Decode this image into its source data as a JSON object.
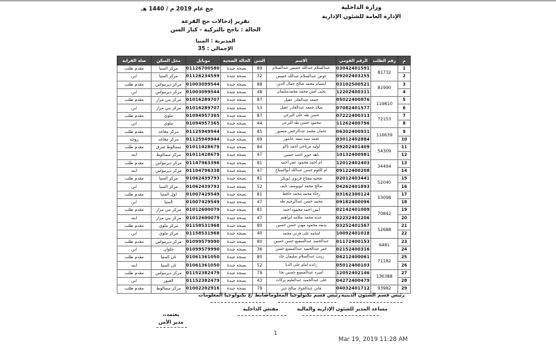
{
  "colors": {
    "table_header_bg": "#4d4d4d",
    "table_border": "#7a7a7a"
  },
  "page_header": {
    "ministry": "وزارة الداخلية",
    "department": "الإدارة العامة للشئون الإدارية",
    "hajj_year": "حج عام 2019 م / 1440 هـ"
  },
  "report": {
    "title": "تقرير إدخالات حج القرعة",
    "status_line": "الحالة : ناجح بالتزكية - كبار السن",
    "directorate_line": "المديرية : المنيا",
    "total_line": "الإجمالي : 35"
  },
  "table": {
    "columns": [
      "م",
      "رقم الطلب",
      "الرقم القومي",
      "الاسم",
      "السن",
      "الحالة الصحية",
      "موبايل",
      "محل السكن",
      "صلة القرابة"
    ],
    "rows": [
      {
        "no": "1",
        "request_no": "81732",
        "national_id": "23003042401591",
        "name": "عبدالسلام عبدالله خميس عبدالسلام",
        "age": "89",
        "health": "بصحة جيدة",
        "mobile": "01126700580",
        "residence": "مركز المنيا",
        "relation": "مقدم طلب"
      },
      {
        "no": "2",
        "request_no": "",
        "national_id": "28609202403255",
        "name": "عوض عبدالسلام عبدالله خميس",
        "age": "32",
        "health": "بصحة جيدة",
        "mobile": "01126234599",
        "residence": "مركز المنيا",
        "relation": "ابن"
      },
      {
        "no": "3",
        "request_no": "81990",
        "national_id": "23103102500521",
        "name": "ابتسام محمد صالح جمال الدين",
        "age": "88",
        "health": "بصحة جيدة",
        "mobile": "01003099544",
        "residence": "مركز ديرمواس",
        "relation": "مقدم طلب"
      },
      {
        "no": "4",
        "request_no": "",
        "national_id": "27012202400311",
        "name": "يحيى امين محمد محمدسليمان",
        "age": "48",
        "health": "بصحة جيدة",
        "mobile": "01003099544",
        "residence": "مركز ديرمواس",
        "relation": "ابن"
      },
      {
        "no": "5",
        "request_no": "119810",
        "national_id": "23205022400876",
        "name": "جمعه عبدالقادر عقيل",
        "age": "87",
        "health": "بصحة جيدة",
        "mobile": "01016289707",
        "residence": "مركز بني مزار",
        "relation": "مقدم طلب"
      },
      {
        "no": "6",
        "request_no": "",
        "national_id": "26507082401577",
        "name": "ميلاد جمعه عبدالقادر عقيل",
        "age": "53",
        "health": "بصحة جيدة",
        "mobile": "01016289707",
        "residence": "مركز بني مزار",
        "relation": "ابن"
      },
      {
        "no": "7",
        "request_no": "72153",
        "national_id": "23107222400313",
        "name": "حسن طه على البرعي",
        "age": "87",
        "health": "بصحة جيدة",
        "mobile": "01094957365",
        "residence": "ملوي",
        "relation": "مقدم طلب"
      },
      {
        "no": "8",
        "request_no": "",
        "national_id": "27411262400796",
        "name": "محمود حسن طه البرعي",
        "age": "44",
        "health": "بصحة جيدة",
        "mobile": "01094957365",
        "residence": "ملوي",
        "relation": "ابن"
      },
      {
        "no": "9",
        "request_no": "116639",
        "national_id": "23406302400931",
        "name": "عثمان محمد عبدالرحمن منصور",
        "age": "85",
        "health": "بصحة جيدة",
        "mobile": "01125949944",
        "residence": "مركز مغاغه",
        "relation": "مقدم طلب"
      },
      {
        "no": "10",
        "request_no": "",
        "national_id": "25003012402884",
        "name": "نجمه سيد سعد عاشور",
        "age": "69",
        "health": "بصحة جيدة",
        "mobile": "01125949944",
        "residence": "مركز مغاغه",
        "relation": "زوجة"
      },
      {
        "no": "11",
        "request_no": "54309",
        "national_id": "23409202401409",
        "name": "اوليه مرتاحي احمد باكو",
        "age": "84",
        "health": "بصحة جيدة",
        "mobile": "01011428679",
        "residence": "سمالوط شرق",
        "relation": "مقدم طلب"
      },
      {
        "no": "12",
        "request_no": "",
        "national_id": "27110132400981",
        "name": "ناهد جوير احمد حسين",
        "age": "47",
        "health": "بصحة جيدة",
        "mobile": "01011428679",
        "residence": "مركز سمالوط",
        "relation": "ابنه"
      },
      {
        "no": "13",
        "request_no": "34494",
        "national_id": "23712012402403",
        "name": "ام احمد محمود عمر احمد",
        "age": "81",
        "health": "بصحة جيدة",
        "mobile": "01147963396",
        "residence": "مركز ديرمواس",
        "relation": "مقدم طلب"
      },
      {
        "no": "14",
        "request_no": "",
        "national_id": "27109122400208",
        "name": "ام كلثوم حسن عبدالله ابوالسباع",
        "age": "47",
        "health": "بصحة جيدة",
        "mobile": "01104796338",
        "residence": "مركز ديرمواس",
        "relation": "ابنه"
      },
      {
        "no": "15",
        "request_no": "52040",
        "national_id": "23602012403441",
        "name": "فتحيه مفتاح قريوي ابوبكر",
        "age": "81",
        "health": "بصحة جيدة",
        "mobile": "01062439793",
        "residence": "مركز المنيا",
        "relation": "مقدم طلب"
      },
      {
        "no": "16",
        "request_no": "",
        "national_id": "26704262401893",
        "name": "صالح محمد ابويوسف نايف",
        "age": "52",
        "health": "بصحة جيدة",
        "mobile": "01062439793",
        "residence": "مركز المنيا",
        "relation": "ابن"
      },
      {
        "no": "17",
        "request_no": "53098",
        "national_id": "23803162300124",
        "name": "رجاء محمد محمد حافظ",
        "age": "81",
        "health": "بصحة جيدة",
        "mobile": "01007429549",
        "residence": "اول المنيا",
        "relation": "مقدم طلب"
      },
      {
        "no": "18",
        "request_no": "",
        "national_id": "27109182400096",
        "name": "محمد حسن عبدالرحيم طه",
        "age": "47",
        "health": "بصحة جيدة",
        "mobile": "01007429549",
        "residence": "المنيا",
        "relation": "ابن"
      },
      {
        "no": "19",
        "request_no": "70842",
        "national_id": "23602142401009",
        "name": "أنس احمد محمود احمد",
        "age": "81",
        "health": "بصحة جيدة",
        "mobile": "01012600079",
        "residence": "مركز بني مزار",
        "relation": "مقدم طلب"
      },
      {
        "no": "20",
        "request_no": "",
        "national_id": "27202232402206",
        "name": "عذبه محمد سلامه ابراهيم",
        "age": "47",
        "health": "بصحة جيدة",
        "mobile": "01012600079",
        "residence": "مركز بني مزار",
        "relation": "ابنه"
      },
      {
        "no": "21",
        "request_no": "52688",
        "national_id": "23903252401567",
        "name": "بديعه محمود مهني حسن حسين",
        "age": "80",
        "health": "بصحة جيدة",
        "mobile": "01158531968",
        "residence": "مركز ملوي",
        "relation": "مقدم طلب"
      },
      {
        "no": "22",
        "request_no": "",
        "national_id": "27610092401018",
        "name": "اسامه على قرني محمد",
        "age": "40",
        "health": "بصحة جيدة",
        "mobile": "01158531968",
        "residence": "مركز ملوي",
        "relation": "ابن"
      },
      {
        "no": "23",
        "request_no": "6481",
        "national_id": "23901172400153",
        "name": "عبدالحميد عبدالسميع حسن حسين",
        "age": "80",
        "health": "بصحة جيدة",
        "mobile": "01099579990",
        "residence": "مركز ديرمواس",
        "relation": "مقدم طلب"
      },
      {
        "no": "24",
        "request_no": "",
        "national_id": "28302152400316",
        "name": "عمر عبدالحميد عبدالسميع حسن",
        "age": "36",
        "health": "بصحة جيدة",
        "mobile": "01099579990",
        "residence": "حلوان",
        "relation": "ابن"
      },
      {
        "no": "25",
        "request_no": "71182",
        "national_id": "23904212400061",
        "name": "زينب عبدالسلام سليمان جاد",
        "age": "80",
        "health": "بصحة جيدة",
        "mobile": "01061361050",
        "residence": "ثان المنيا",
        "relation": "مقدم طلب"
      },
      {
        "no": "26",
        "request_no": "",
        "national_id": "26705012400103",
        "name": "رائده امام على الدبا",
        "age": "52",
        "health": "بصحة جيدة",
        "mobile": "01061361050",
        "residence": "ثان المنيا",
        "relation": "ابنه"
      },
      {
        "no": "27",
        "request_no": "136388",
        "national_id": "23912052402146",
        "name": "أميره عبدالسميع حسين نجا",
        "age": "79",
        "health": "بصحة جيدة",
        "mobile": "01152382479",
        "residence": "مركز ديرمواس",
        "relation": "مقدم طلب"
      },
      {
        "no": "28",
        "request_no": "",
        "national_id": "27604272400479",
        "name": "على عبدالحميد عبدالعليم بركات",
        "age": "43",
        "health": "بصحة جيدة",
        "mobile": "01152382479",
        "residence": "العبور",
        "relation": "ابن"
      },
      {
        "no": "29",
        "request_no": "93982",
        "national_id": "24004032401712",
        "name": "فاني عبدالجواد صالح جبر",
        "age": "79",
        "health": "بصحة جيدة",
        "mobile": "01002202916",
        "residence": "مركز سمالوط",
        "relation": "مقدم طلب"
      }
    ]
  },
  "footer": {
    "sig_religious": "رئيس قسم الشئون الدينية",
    "sig_it_head": "رئيس قسم تكنولوجيا المعلومات",
    "sig_it_officer": "ضابط /ع تكنولوجيا المعلومات",
    "sig_assistant_director": "مساعد المدير للشئون الإدارية والمالية",
    "sig_interior_inspector": "مفتش الداخلية",
    "approve_word": "يعتمد،،",
    "approve_title": "مدير الأمن",
    "page_number": "1",
    "print_date": "Mar 19, 2019 11:28 AM"
  }
}
